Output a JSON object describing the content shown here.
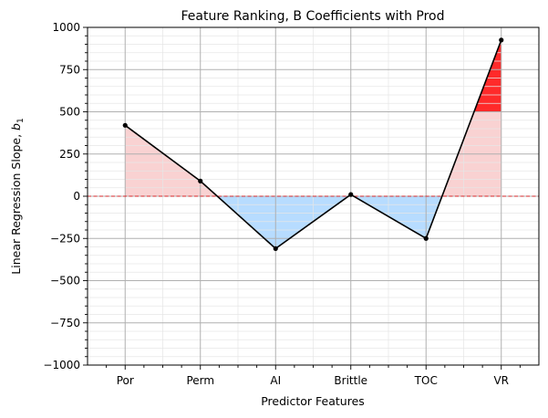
{
  "chart_data": {
    "type": "line",
    "title": "Feature Ranking, B Coefficients with Prod",
    "xlabel": "Predictor Features",
    "ylabel_main": "Linear Regression Slope, ",
    "ylabel_var": "b",
    "ylabel_sub": "1",
    "categories": [
      "Por",
      "Perm",
      "AI",
      "Brittle",
      "TOC",
      "VR"
    ],
    "series": [
      {
        "values": [
          420,
          90,
          -310,
          10,
          -250,
          925
        ]
      }
    ],
    "ylim": [
      -1000,
      1000
    ],
    "yticks": [
      -1000,
      -750,
      -500,
      -250,
      0,
      250,
      500,
      750,
      1000
    ],
    "ytick_labels": [
      "−1000",
      "−750",
      "−500",
      "−250",
      "0",
      "250",
      "500",
      "750",
      "1000"
    ],
    "reference_line": 0,
    "highlight_threshold": 500,
    "grid": true,
    "colors": {
      "line": "#000000",
      "positive_fill": "#f4a6a6",
      "negative_fill": "#87c4ff",
      "highlight_fill": "#ff2a2a",
      "zero_line": "#d62728",
      "major_grid": "#b0b0b0",
      "minor_grid": "#e6e6e6"
    }
  }
}
